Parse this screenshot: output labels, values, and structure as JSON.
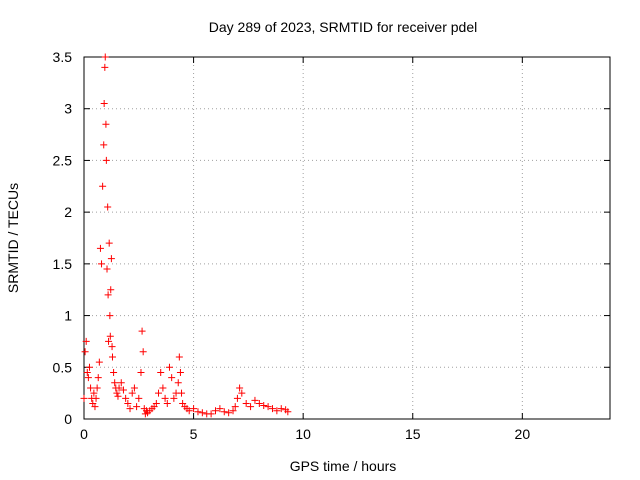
{
  "chart_data": {
    "type": "scatter",
    "title": "Day 289 of 2023, SRMTID for receiver pdel",
    "xlabel": "GPS time / hours",
    "ylabel": "SRMTID / TECUs",
    "xlim": [
      0,
      24
    ],
    "ylim": [
      0,
      3.5
    ],
    "x_ticks": [
      0,
      5,
      10,
      15,
      20
    ],
    "y_ticks": [
      0,
      0.5,
      1,
      1.5,
      2,
      2.5,
      3,
      3.5
    ],
    "x_tick_labels": [
      "0",
      "5",
      "10",
      "15",
      "20"
    ],
    "y_tick_labels": [
      "0",
      "0.5",
      "1",
      "1.5",
      "2",
      "2.5",
      "3",
      "3.5"
    ],
    "grid": true,
    "marker": "+",
    "series": [
      {
        "name": "SRMTID",
        "color": "#ff0000",
        "x": [
          0.0,
          0.05,
          0.1,
          0.15,
          0.2,
          0.25,
          0.3,
          0.35,
          0.4,
          0.45,
          0.5,
          0.55,
          0.6,
          0.65,
          0.7,
          0.75,
          0.8,
          0.85,
          0.9,
          0.92,
          0.95,
          0.97,
          1.0,
          1.02,
          1.05,
          1.08,
          1.1,
          1.12,
          1.15,
          1.18,
          1.2,
          1.22,
          1.25,
          1.28,
          1.3,
          1.35,
          1.4,
          1.45,
          1.5,
          1.55,
          1.6,
          1.7,
          1.8,
          1.9,
          2.0,
          2.1,
          2.2,
          2.3,
          2.4,
          2.5,
          2.6,
          2.65,
          2.7,
          2.75,
          2.8,
          2.85,
          2.9,
          3.0,
          3.1,
          3.2,
          3.3,
          3.4,
          3.5,
          3.6,
          3.7,
          3.8,
          3.9,
          4.0,
          4.1,
          4.2,
          4.3,
          4.35,
          4.4,
          4.45,
          4.5,
          4.6,
          4.7,
          4.8,
          5.0,
          5.2,
          5.4,
          5.6,
          5.8,
          6.0,
          6.2,
          6.4,
          6.6,
          6.8,
          6.9,
          7.0,
          7.1,
          7.2,
          7.4,
          7.6,
          7.8,
          8.0,
          8.2,
          8.4,
          8.6,
          8.8,
          9.0,
          9.2,
          9.3
        ],
        "y": [
          0.2,
          0.65,
          0.75,
          0.45,
          0.4,
          0.5,
          0.3,
          0.2,
          0.15,
          0.25,
          0.12,
          0.2,
          0.3,
          0.4,
          0.55,
          1.65,
          1.5,
          2.25,
          2.65,
          3.05,
          3.4,
          3.5,
          2.85,
          2.5,
          1.45,
          2.05,
          1.2,
          0.75,
          1.7,
          1.0,
          0.8,
          1.25,
          1.55,
          0.7,
          0.6,
          0.45,
          0.35,
          0.3,
          0.25,
          0.22,
          0.3,
          0.35,
          0.28,
          0.2,
          0.15,
          0.1,
          0.25,
          0.3,
          0.12,
          0.2,
          0.45,
          0.85,
          0.65,
          0.1,
          0.05,
          0.08,
          0.06,
          0.08,
          0.1,
          0.12,
          0.15,
          0.25,
          0.45,
          0.3,
          0.2,
          0.15,
          0.5,
          0.4,
          0.2,
          0.25,
          0.35,
          0.6,
          0.45,
          0.25,
          0.15,
          0.12,
          0.1,
          0.08,
          0.1,
          0.07,
          0.06,
          0.05,
          0.05,
          0.08,
          0.1,
          0.07,
          0.06,
          0.08,
          0.12,
          0.2,
          0.3,
          0.25,
          0.15,
          0.12,
          0.18,
          0.15,
          0.13,
          0.12,
          0.1,
          0.08,
          0.1,
          0.09,
          0.07
        ]
      }
    ]
  }
}
